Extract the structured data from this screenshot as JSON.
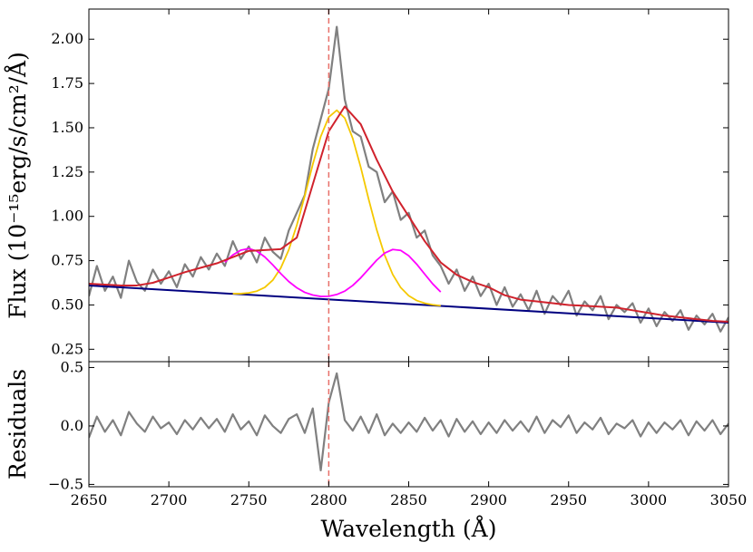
{
  "chart_data": [
    {
      "type": "line",
      "ylabel": "Flux (10⁻¹⁵erg/s/cm²/Å)",
      "xlim": [
        2650,
        3050
      ],
      "ylim": [
        0.18,
        2.17
      ],
      "xticks": [
        2650,
        2700,
        2750,
        2800,
        2850,
        2900,
        2950,
        3000,
        3050
      ],
      "yticks": [
        0.25,
        {
          "value": 0.5,
          "label": "0.50"
        },
        0.75,
        {
          "value": 1,
          "label": "1.00"
        },
        1.25,
        {
          "value": 1.5,
          "label": "1.50"
        },
        1.75,
        {
          "value": 2,
          "label": "2.00"
        }
      ],
      "vline": 2800,
      "vline_color": "#e8706a",
      "x": [
        2650,
        2655,
        2660,
        2665,
        2670,
        2675,
        2680,
        2685,
        2690,
        2695,
        2700,
        2705,
        2710,
        2715,
        2720,
        2725,
        2730,
        2735,
        2740,
        2745,
        2750,
        2755,
        2760,
        2765,
        2770,
        2775,
        2780,
        2785,
        2790,
        2795,
        2800,
        2805,
        2810,
        2815,
        2820,
        2825,
        2830,
        2835,
        2840,
        2845,
        2850,
        2855,
        2860,
        2865,
        2870,
        2875,
        2880,
        2885,
        2890,
        2895,
        2900,
        2905,
        2910,
        2915,
        2920,
        2925,
        2930,
        2935,
        2940,
        2945,
        2950,
        2955,
        2960,
        2965,
        2970,
        2975,
        2980,
        2985,
        2990,
        2995,
        3000,
        3005,
        3010,
        3015,
        3020,
        3025,
        3030,
        3035,
        3040,
        3045,
        3050
      ],
      "series": [
        {
          "color": "#808080",
          "width": 2.2,
          "values": [
            0.55,
            0.72,
            0.58,
            0.66,
            0.54,
            0.75,
            0.63,
            0.58,
            0.7,
            0.62,
            0.69,
            0.6,
            0.73,
            0.66,
            0.77,
            0.7,
            0.79,
            0.72,
            0.86,
            0.76,
            0.83,
            0.74,
            0.88,
            0.8,
            0.76,
            0.92,
            1.02,
            1.12,
            1.38,
            1.55,
            1.72,
            2.07,
            1.66,
            1.48,
            1.45,
            1.28,
            1.25,
            1.08,
            1.14,
            0.98,
            1.02,
            0.88,
            0.92,
            0.78,
            0.72,
            0.62,
            0.7,
            0.58,
            0.66,
            0.55,
            0.62,
            0.5,
            0.6,
            0.49,
            0.56,
            0.47,
            0.58,
            0.45,
            0.55,
            0.5,
            0.58,
            0.44,
            0.52,
            0.47,
            0.55,
            0.42,
            0.5,
            0.46,
            0.51,
            0.4,
            0.48,
            0.38,
            0.46,
            0.41,
            0.47,
            0.36,
            0.44,
            0.39,
            0.45,
            0.35,
            0.43
          ]
        },
        {
          "color": "#000080",
          "width": 2,
          "x": [
            2650,
            3050
          ],
          "values": [
            0.61,
            0.4
          ]
        },
        {
          "color": "#f5c800",
          "width": 1.8,
          "x": [
            2740,
            2745,
            2750,
            2755,
            2760,
            2765,
            2770,
            2775,
            2780,
            2785,
            2790,
            2795,
            2800,
            2805,
            2810,
            2815,
            2820,
            2825,
            2830,
            2835,
            2840,
            2845,
            2850,
            2855,
            2860,
            2865,
            2870
          ],
          "values": [
            0.564,
            0.564,
            0.568,
            0.578,
            0.599,
            0.64,
            0.709,
            0.811,
            0.95,
            1.116,
            1.293,
            1.451,
            1.56,
            1.599,
            1.555,
            1.44,
            1.277,
            1.095,
            0.924,
            0.78,
            0.672,
            0.598,
            0.552,
            0.525,
            0.51,
            0.501,
            0.496
          ]
        },
        {
          "color": "#ff00ff",
          "width": 1.8,
          "x": [
            2735,
            2740,
            2745,
            2750,
            2755,
            2760,
            2765,
            2770,
            2775,
            2780,
            2785,
            2790,
            2795,
            2800,
            2805,
            2810,
            2815,
            2820,
            2825,
            2830,
            2835,
            2840,
            2845,
            2850,
            2855,
            2860,
            2865,
            2870
          ],
          "values": [
            0.742,
            0.782,
            0.809,
            0.818,
            0.804,
            0.771,
            0.726,
            0.677,
            0.632,
            0.597,
            0.571,
            0.556,
            0.548,
            0.549,
            0.559,
            0.578,
            0.61,
            0.653,
            0.703,
            0.753,
            0.793,
            0.813,
            0.808,
            0.778,
            0.73,
            0.674,
            0.619,
            0.573
          ]
        },
        {
          "color": "#d0222c",
          "width": 2,
          "x": [
            2650,
            2660,
            2670,
            2680,
            2690,
            2700,
            2710,
            2720,
            2730,
            2740,
            2750,
            2760,
            2770,
            2780,
            2790,
            2800,
            2810,
            2820,
            2830,
            2840,
            2850,
            2860,
            2870,
            2880,
            2890,
            2900,
            2910,
            2920,
            2930,
            2940,
            2950,
            2960,
            2970,
            2980,
            2990,
            3000,
            3010,
            3020,
            3030,
            3040,
            3050
          ],
          "values": [
            0.62,
            0.615,
            0.61,
            0.61,
            0.625,
            0.655,
            0.685,
            0.71,
            0.735,
            0.77,
            0.805,
            0.81,
            0.815,
            0.88,
            1.18,
            1.48,
            1.62,
            1.52,
            1.32,
            1.14,
            1.0,
            0.86,
            0.74,
            0.67,
            0.63,
            0.6,
            0.555,
            0.53,
            0.52,
            0.51,
            0.5,
            0.495,
            0.49,
            0.485,
            0.47,
            0.455,
            0.44,
            0.43,
            0.42,
            0.41,
            0.405
          ]
        }
      ]
    },
    {
      "type": "line",
      "ylabel": "Residuals",
      "xlabel": "Wavelength (Å)",
      "xlim": [
        2650,
        3050
      ],
      "ylim": [
        -0.52,
        0.55
      ],
      "xticks": [
        2650,
        2700,
        2750,
        2800,
        2850,
        2900,
        2950,
        3000,
        3050
      ],
      "yticks": [
        {
          "value": -0.5,
          "label": "−0.5"
        },
        {
          "value": 0,
          "label": "0.0"
        },
        0.5
      ],
      "vline": 2800,
      "vline_color": "#e8706a",
      "x": [
        2650,
        2655,
        2660,
        2665,
        2670,
        2675,
        2680,
        2685,
        2690,
        2695,
        2700,
        2705,
        2710,
        2715,
        2720,
        2725,
        2730,
        2735,
        2740,
        2745,
        2750,
        2755,
        2760,
        2765,
        2770,
        2775,
        2780,
        2785,
        2790,
        2795,
        2800,
        2805,
        2810,
        2815,
        2820,
        2825,
        2830,
        2835,
        2840,
        2845,
        2850,
        2855,
        2860,
        2865,
        2870,
        2875,
        2880,
        2885,
        2890,
        2895,
        2900,
        2905,
        2910,
        2915,
        2920,
        2925,
        2930,
        2935,
        2940,
        2945,
        2950,
        2955,
        2960,
        2965,
        2970,
        2975,
        2980,
        2985,
        2990,
        2995,
        3000,
        3005,
        3010,
        3015,
        3020,
        3025,
        3030,
        3035,
        3040,
        3045,
        3050
      ],
      "series": [
        {
          "color": "#808080",
          "width": 2.2,
          "values": [
            -0.1,
            0.08,
            -0.05,
            0.05,
            -0.08,
            0.12,
            0.02,
            -0.05,
            0.08,
            -0.02,
            0.03,
            -0.07,
            0.05,
            -0.03,
            0.07,
            -0.02,
            0.06,
            -0.05,
            0.1,
            -0.03,
            0.04,
            -0.08,
            0.09,
            0,
            -0.06,
            0.06,
            0.1,
            -0.06,
            0.15,
            -0.38,
            0.2,
            0.45,
            0.05,
            -0.04,
            0.08,
            -0.06,
            0.1,
            -0.08,
            0.02,
            -0.06,
            0.03,
            -0.05,
            0.07,
            -0.04,
            0.05,
            -0.09,
            0.06,
            -0.05,
            0.04,
            -0.07,
            0.03,
            -0.06,
            0.05,
            -0.04,
            0.04,
            -0.05,
            0.08,
            -0.06,
            0.05,
            -0.01,
            0.09,
            -0.06,
            0.03,
            -0.03,
            0.07,
            -0.07,
            0.02,
            -0.02,
            0.05,
            -0.09,
            0.03,
            -0.06,
            0.03,
            -0.03,
            0.05,
            -0.08,
            0.04,
            -0.04,
            0.05,
            -0.07,
            0.02
          ]
        }
      ]
    }
  ]
}
